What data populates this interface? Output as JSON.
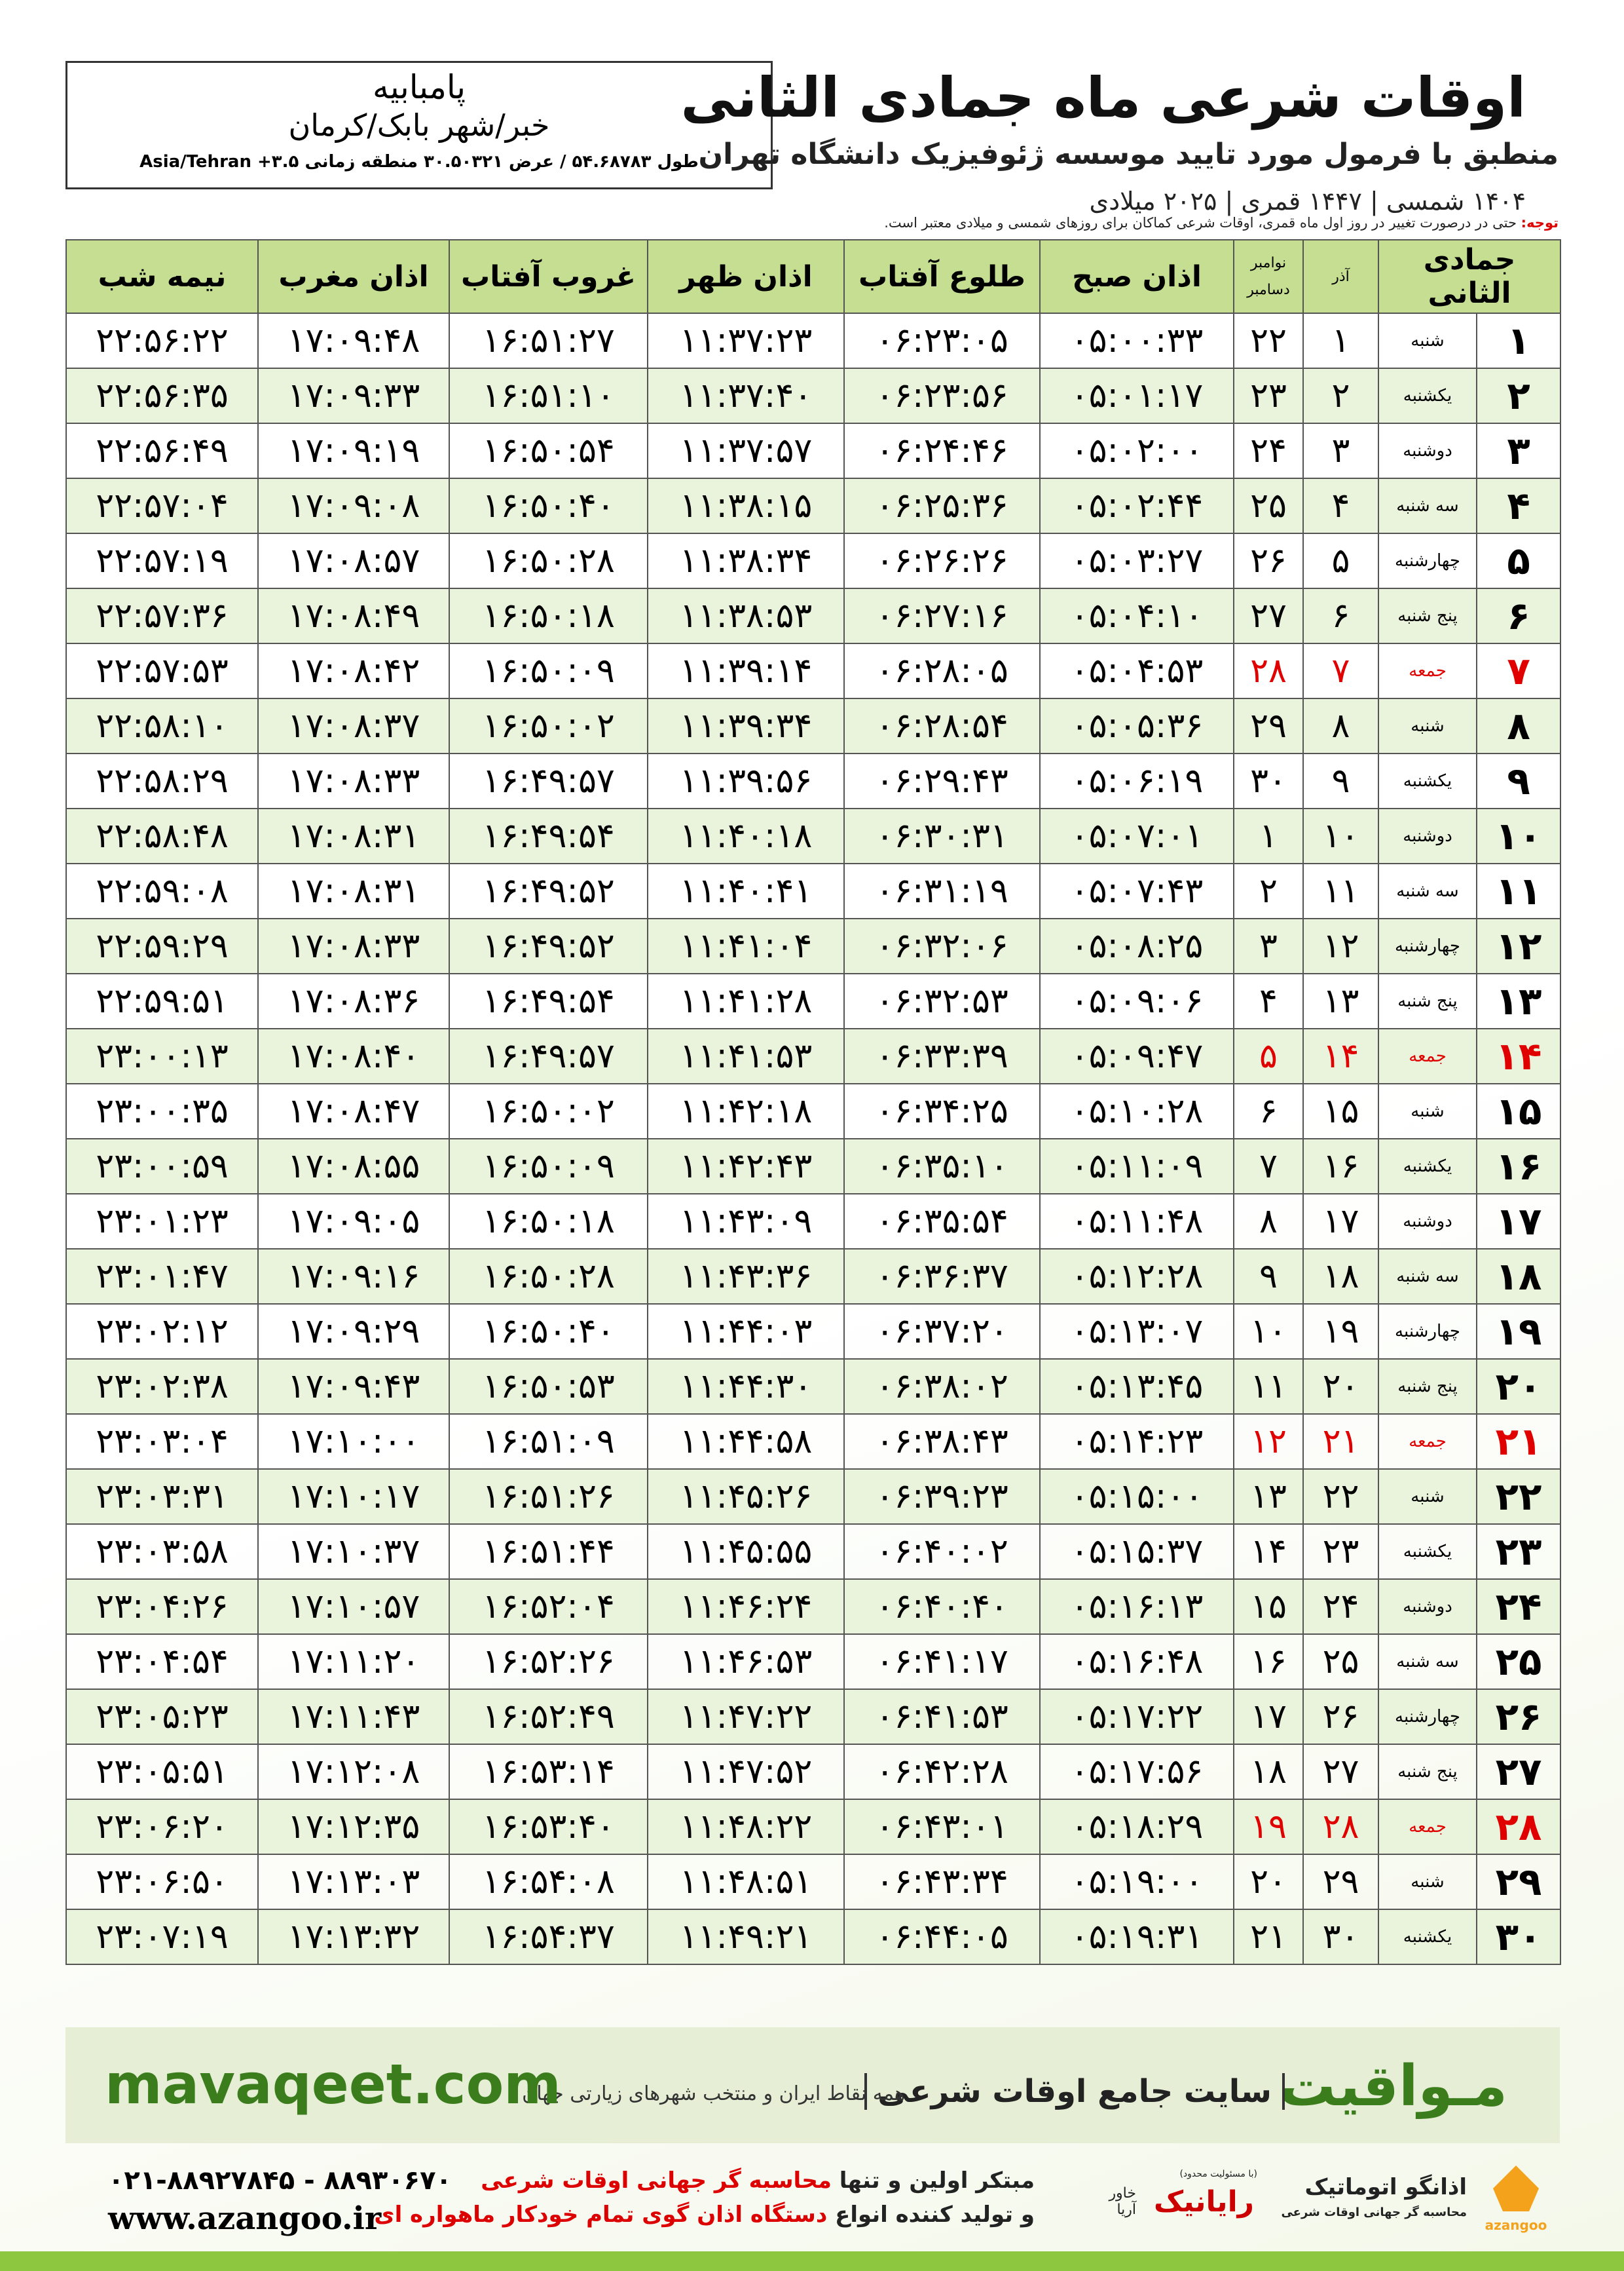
{
  "header": {
    "title": "اوقات شرعی ماه جمادی الثانی",
    "subtitle": "منطبق با فرمول مورد تایید موسسه ژئوفیزیک دانشگاه تهران",
    "years": "۱۴۰۴ شمسی | ۱۴۴۷ قمری | ۲۰۲۵ میلادی"
  },
  "location": {
    "name": "پامبابیه",
    "region": "خبر/شهر بابک/کرمان",
    "coords": "طول ۵۴.۶۸۷۸۳ / عرض ۳۰.۵۰۳۲۱ منطقه زمانی ۳.۵+ Asia/Tehran"
  },
  "note": {
    "label": "توجه:",
    "text": "حتی در درصورت تغییر در روز اول ماه قمری، اوقات شرعی کماکان برای روزهای شمسی و میلادی معتبر است."
  },
  "table": {
    "columns": [
      "جمادی الثانی",
      "آذر",
      "نوامبر",
      "دسامبر",
      "اذان صبح",
      "طلوع آفتاب",
      "اذان ظهر",
      "غروب آفتاب",
      "اذان مغرب",
      "نیمه شب"
    ],
    "rows": [
      [
        "۱",
        "شنبه",
        "۱",
        "۲۲",
        "۰۵:۰۰:۳۳",
        "۰۶:۲۳:۰۵",
        "۱۱:۳۷:۲۳",
        "۱۶:۵۱:۲۷",
        "۱۷:۰۹:۴۸",
        "۲۲:۵۶:۲۲"
      ],
      [
        "۲",
        "یکشنبه",
        "۲",
        "۲۳",
        "۰۵:۰۱:۱۷",
        "۰۶:۲۳:۵۶",
        "۱۱:۳۷:۴۰",
        "۱۶:۵۱:۱۰",
        "۱۷:۰۹:۳۳",
        "۲۲:۵۶:۳۵"
      ],
      [
        "۳",
        "دوشنبه",
        "۳",
        "۲۴",
        "۰۵:۰۲:۰۰",
        "۰۶:۲۴:۴۶",
        "۱۱:۳۷:۵۷",
        "۱۶:۵۰:۵۴",
        "۱۷:۰۹:۱۹",
        "۲۲:۵۶:۴۹"
      ],
      [
        "۴",
        "سه شنبه",
        "۴",
        "۲۵",
        "۰۵:۰۲:۴۴",
        "۰۶:۲۵:۳۶",
        "۱۱:۳۸:۱۵",
        "۱۶:۵۰:۴۰",
        "۱۷:۰۹:۰۸",
        "۲۲:۵۷:۰۴"
      ],
      [
        "۵",
        "چهارشنبه",
        "۵",
        "۲۶",
        "۰۵:۰۳:۲۷",
        "۰۶:۲۶:۲۶",
        "۱۱:۳۸:۳۴",
        "۱۶:۵۰:۲۸",
        "۱۷:۰۸:۵۷",
        "۲۲:۵۷:۱۹"
      ],
      [
        "۶",
        "پنج شنبه",
        "۶",
        "۲۷",
        "۰۵:۰۴:۱۰",
        "۰۶:۲۷:۱۶",
        "۱۱:۳۸:۵۳",
        "۱۶:۵۰:۱۸",
        "۱۷:۰۸:۴۹",
        "۲۲:۵۷:۳۶"
      ],
      [
        "۷",
        "جمعه",
        "۷",
        "۲۸",
        "۰۵:۰۴:۵۳",
        "۰۶:۲۸:۰۵",
        "۱۱:۳۹:۱۴",
        "۱۶:۵۰:۰۹",
        "۱۷:۰۸:۴۲",
        "۲۲:۵۷:۵۳"
      ],
      [
        "۸",
        "شنبه",
        "۸",
        "۲۹",
        "۰۵:۰۵:۳۶",
        "۰۶:۲۸:۵۴",
        "۱۱:۳۹:۳۴",
        "۱۶:۵۰:۰۲",
        "۱۷:۰۸:۳۷",
        "۲۲:۵۸:۱۰"
      ],
      [
        "۹",
        "یکشنبه",
        "۹",
        "۳۰",
        "۰۵:۰۶:۱۹",
        "۰۶:۲۹:۴۳",
        "۱۱:۳۹:۵۶",
        "۱۶:۴۹:۵۷",
        "۱۷:۰۸:۳۳",
        "۲۲:۵۸:۲۹"
      ],
      [
        "۱۰",
        "دوشنبه",
        "۱۰",
        "۱",
        "۰۵:۰۷:۰۱",
        "۰۶:۳۰:۳۱",
        "۱۱:۴۰:۱۸",
        "۱۶:۴۹:۵۴",
        "۱۷:۰۸:۳۱",
        "۲۲:۵۸:۴۸"
      ],
      [
        "۱۱",
        "سه شنبه",
        "۱۱",
        "۲",
        "۰۵:۰۷:۴۳",
        "۰۶:۳۱:۱۹",
        "۱۱:۴۰:۴۱",
        "۱۶:۴۹:۵۲",
        "۱۷:۰۸:۳۱",
        "۲۲:۵۹:۰۸"
      ],
      [
        "۱۲",
        "چهارشنبه",
        "۱۲",
        "۳",
        "۰۵:۰۸:۲۵",
        "۰۶:۳۲:۰۶",
        "۱۱:۴۱:۰۴",
        "۱۶:۴۹:۵۲",
        "۱۷:۰۸:۳۳",
        "۲۲:۵۹:۲۹"
      ],
      [
        "۱۳",
        "پنج شنبه",
        "۱۳",
        "۴",
        "۰۵:۰۹:۰۶",
        "۰۶:۳۲:۵۳",
        "۱۱:۴۱:۲۸",
        "۱۶:۴۹:۵۴",
        "۱۷:۰۸:۳۶",
        "۲۲:۵۹:۵۱"
      ],
      [
        "۱۴",
        "جمعه",
        "۱۴",
        "۵",
        "۰۵:۰۹:۴۷",
        "۰۶:۳۳:۳۹",
        "۱۱:۴۱:۵۳",
        "۱۶:۴۹:۵۷",
        "۱۷:۰۸:۴۰",
        "۲۳:۰۰:۱۳"
      ],
      [
        "۱۵",
        "شنبه",
        "۱۵",
        "۶",
        "۰۵:۱۰:۲۸",
        "۰۶:۳۴:۲۵",
        "۱۱:۴۲:۱۸",
        "۱۶:۵۰:۰۲",
        "۱۷:۰۸:۴۷",
        "۲۳:۰۰:۳۵"
      ],
      [
        "۱۶",
        "یکشنبه",
        "۱۶",
        "۷",
        "۰۵:۱۱:۰۹",
        "۰۶:۳۵:۱۰",
        "۱۱:۴۲:۴۳",
        "۱۶:۵۰:۰۹",
        "۱۷:۰۸:۵۵",
        "۲۳:۰۰:۵۹"
      ],
      [
        "۱۷",
        "دوشنبه",
        "۱۷",
        "۸",
        "۰۵:۱۱:۴۸",
        "۰۶:۳۵:۵۴",
        "۱۱:۴۳:۰۹",
        "۱۶:۵۰:۱۸",
        "۱۷:۰۹:۰۵",
        "۲۳:۰۱:۲۳"
      ],
      [
        "۱۸",
        "سه شنبه",
        "۱۸",
        "۹",
        "۰۵:۱۲:۲۸",
        "۰۶:۳۶:۳۷",
        "۱۱:۴۳:۳۶",
        "۱۶:۵۰:۲۸",
        "۱۷:۰۹:۱۶",
        "۲۳:۰۱:۴۷"
      ],
      [
        "۱۹",
        "چهارشنبه",
        "۱۹",
        "۱۰",
        "۰۵:۱۳:۰۷",
        "۰۶:۳۷:۲۰",
        "۱۱:۴۴:۰۳",
        "۱۶:۵۰:۴۰",
        "۱۷:۰۹:۲۹",
        "۲۳:۰۲:۱۲"
      ],
      [
        "۲۰",
        "پنج شنبه",
        "۲۰",
        "۱۱",
        "۰۵:۱۳:۴۵",
        "۰۶:۳۸:۰۲",
        "۱۱:۴۴:۳۰",
        "۱۶:۵۰:۵۳",
        "۱۷:۰۹:۴۳",
        "۲۳:۰۲:۳۸"
      ],
      [
        "۲۱",
        "جمعه",
        "۲۱",
        "۱۲",
        "۰۵:۱۴:۲۳",
        "۰۶:۳۸:۴۳",
        "۱۱:۴۴:۵۸",
        "۱۶:۵۱:۰۹",
        "۱۷:۱۰:۰۰",
        "۲۳:۰۳:۰۴"
      ],
      [
        "۲۲",
        "شنبه",
        "۲۲",
        "۱۳",
        "۰۵:۱۵:۰۰",
        "۰۶:۳۹:۲۳",
        "۱۱:۴۵:۲۶",
        "۱۶:۵۱:۲۶",
        "۱۷:۱۰:۱۷",
        "۲۳:۰۳:۳۱"
      ],
      [
        "۲۳",
        "یکشنبه",
        "۲۳",
        "۱۴",
        "۰۵:۱۵:۳۷",
        "۰۶:۴۰:۰۲",
        "۱۱:۴۵:۵۵",
        "۱۶:۵۱:۴۴",
        "۱۷:۱۰:۳۷",
        "۲۳:۰۳:۵۸"
      ],
      [
        "۲۴",
        "دوشنبه",
        "۲۴",
        "۱۵",
        "۰۵:۱۶:۱۳",
        "۰۶:۴۰:۴۰",
        "۱۱:۴۶:۲۴",
        "۱۶:۵۲:۰۴",
        "۱۷:۱۰:۵۷",
        "۲۳:۰۴:۲۶"
      ],
      [
        "۲۵",
        "سه شنبه",
        "۲۵",
        "۱۶",
        "۰۵:۱۶:۴۸",
        "۰۶:۴۱:۱۷",
        "۱۱:۴۶:۵۳",
        "۱۶:۵۲:۲۶",
        "۱۷:۱۱:۲۰",
        "۲۳:۰۴:۵۴"
      ],
      [
        "۲۶",
        "چهارشنبه",
        "۲۶",
        "۱۷",
        "۰۵:۱۷:۲۲",
        "۰۶:۴۱:۵۳",
        "۱۱:۴۷:۲۲",
        "۱۶:۵۲:۴۹",
        "۱۷:۱۱:۴۳",
        "۲۳:۰۵:۲۳"
      ],
      [
        "۲۷",
        "پنج شنبه",
        "۲۷",
        "۱۸",
        "۰۵:۱۷:۵۶",
        "۰۶:۴۲:۲۸",
        "۱۱:۴۷:۵۲",
        "۱۶:۵۳:۱۴",
        "۱۷:۱۲:۰۸",
        "۲۳:۰۵:۵۱"
      ],
      [
        "۲۸",
        "جمعه",
        "۲۸",
        "۱۹",
        "۰۵:۱۸:۲۹",
        "۰۶:۴۳:۰۱",
        "۱۱:۴۸:۲۲",
        "۱۶:۵۳:۴۰",
        "۱۷:۱۲:۳۵",
        "۲۳:۰۶:۲۰"
      ],
      [
        "۲۹",
        "شنبه",
        "۲۹",
        "۲۰",
        "۰۵:۱۹:۰۰",
        "۰۶:۴۳:۳۴",
        "۱۱:۴۸:۵۱",
        "۱۶:۵۴:۰۸",
        "۱۷:۱۳:۰۳",
        "۲۳:۰۶:۵۰"
      ],
      [
        "۳۰",
        "یکشنبه",
        "۳۰",
        "۲۱",
        "۰۵:۱۹:۳۱",
        "۰۶:۴۴:۰۵",
        "۱۱:۴۹:۲۱",
        "۱۶:۵۴:۳۷",
        "۱۷:۱۳:۳۲",
        "۲۳:۰۷:۱۹"
      ]
    ]
  },
  "footer": {
    "brand": "مـواقیت",
    "tagline": "سایت جامع اوقات شرعی",
    "scope": "همه نقاط ایران و منتخب شهرهای زیارتی جهان",
    "site": "mavaqeet.com",
    "line1_a": "مبتکر اولین و تنها",
    "line1_b": "محاسبه گر جهانی اوقات شرعی",
    "line2_a": "و تولید کننده انواع",
    "line2_b": "دستگاه اذان گوی تمام خودکار ماهواره ای",
    "phones": "۰۲۱-۸۸۹۲۷۸۴۵ - ۸۸۹۳۰۶۷۰",
    "web": "www.azangoo.ir",
    "logo1": "رایانیک",
    "logo1_sub": "خاور آریا",
    "logo1_note": "(با مسئولیت محدود)",
    "logo2": "اذانگو اتوماتیک",
    "logo2_sub": "محاسبه گر جهانی اوقات شرعی",
    "logo2_latin": "azangoo"
  }
}
